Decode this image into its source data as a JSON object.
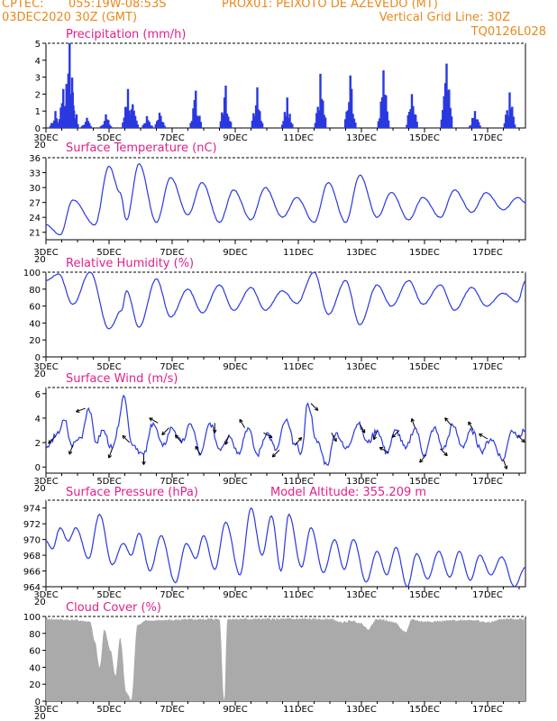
{
  "header": {
    "source": "CPTEC:",
    "coords": "055:19W-08:53S",
    "location": "PROX01: PEIXOTO DE AZEVEDO (MT)",
    "init": "03DEC2020 30Z (GMT)",
    "grid_line": "Vertical Grid Line: 30Z",
    "model_code": "TQ0126L028"
  },
  "colors": {
    "header": "#e8891c",
    "title": "#e0208a",
    "series": "#2a38e0",
    "cloud": "#aaaaaa",
    "arrow": "#000000"
  },
  "chart_data": [
    {
      "type": "bar",
      "title": "Precipitation (mm/h)",
      "ylim": [
        0,
        5
      ],
      "yticks": [
        0,
        1,
        2,
        3,
        4,
        5
      ],
      "x_ticks": [
        "3DEC",
        "5DEC",
        "7DEC",
        "9DEC",
        "11DEC",
        "13DEC",
        "15DEC",
        "17DEC"
      ],
      "x_range_days": [
        3,
        18.2
      ],
      "events": [
        {
          "day": 3.3,
          "value": 1.0
        },
        {
          "day": 3.55,
          "value": 2.3
        },
        {
          "day": 3.65,
          "value": 2.6
        },
        {
          "day": 3.75,
          "value": 5.0
        },
        {
          "day": 3.85,
          "value": 2.1
        },
        {
          "day": 4.3,
          "value": 0.6
        },
        {
          "day": 4.9,
          "value": 0.8
        },
        {
          "day": 5.6,
          "value": 2.3
        },
        {
          "day": 5.75,
          "value": 1.4
        },
        {
          "day": 6.2,
          "value": 0.7
        },
        {
          "day": 6.6,
          "value": 0.9
        },
        {
          "day": 7.75,
          "value": 2.2
        },
        {
          "day": 8.7,
          "value": 2.5
        },
        {
          "day": 9.7,
          "value": 2.4
        },
        {
          "day": 10.65,
          "value": 1.8
        },
        {
          "day": 11.7,
          "value": 3.2
        },
        {
          "day": 12.65,
          "value": 3.1
        },
        {
          "day": 13.7,
          "value": 3.4
        },
        {
          "day": 14.6,
          "value": 2.0
        },
        {
          "day": 15.7,
          "value": 3.8
        },
        {
          "day": 16.6,
          "value": 1.0
        },
        {
          "day": 17.7,
          "value": 2.1
        }
      ]
    },
    {
      "type": "line",
      "title": "Surface Temperature (nC)",
      "ylim": [
        19.5,
        36
      ],
      "yticks": [
        21,
        24,
        27,
        30,
        33,
        36
      ],
      "x_ticks": [
        "3DEC",
        "5DEC",
        "7DEC",
        "9DEC",
        "11DEC",
        "13DEC",
        "15DEC",
        "17DEC"
      ],
      "extrema": [
        {
          "day": 3.0,
          "value": 22.5
        },
        {
          "day": 3.45,
          "value": 20.5
        },
        {
          "day": 3.85,
          "value": 27.5
        },
        {
          "day": 4.55,
          "value": 22.5
        },
        {
          "day": 5.0,
          "value": 34.3
        },
        {
          "day": 5.35,
          "value": 29.0
        },
        {
          "day": 5.55,
          "value": 23.5
        },
        {
          "day": 5.95,
          "value": 34.8
        },
        {
          "day": 6.5,
          "value": 23.0
        },
        {
          "day": 6.95,
          "value": 32.0
        },
        {
          "day": 7.5,
          "value": 24.5
        },
        {
          "day": 7.95,
          "value": 31.0
        },
        {
          "day": 8.5,
          "value": 23.0
        },
        {
          "day": 8.95,
          "value": 29.5
        },
        {
          "day": 9.5,
          "value": 23.5
        },
        {
          "day": 9.95,
          "value": 30.0
        },
        {
          "day": 10.5,
          "value": 24.0
        },
        {
          "day": 10.95,
          "value": 28.0
        },
        {
          "day": 11.5,
          "value": 23.0
        },
        {
          "day": 11.95,
          "value": 31.0
        },
        {
          "day": 12.5,
          "value": 23.0
        },
        {
          "day": 12.95,
          "value": 32.5
        },
        {
          "day": 13.5,
          "value": 24.0
        },
        {
          "day": 13.95,
          "value": 29.0
        },
        {
          "day": 14.5,
          "value": 23.5
        },
        {
          "day": 14.95,
          "value": 28.0
        },
        {
          "day": 15.5,
          "value": 24.0
        },
        {
          "day": 15.95,
          "value": 29.5
        },
        {
          "day": 16.5,
          "value": 25.0
        },
        {
          "day": 16.95,
          "value": 29.0
        },
        {
          "day": 17.5,
          "value": 25.5
        },
        {
          "day": 17.95,
          "value": 28.0
        },
        {
          "day": 18.2,
          "value": 27.0
        }
      ]
    },
    {
      "type": "line",
      "title": "Relative Humidity (%)",
      "ylim": [
        0,
        100
      ],
      "yticks": [
        0,
        20,
        40,
        60,
        80,
        100
      ],
      "x_ticks": [
        "3DEC",
        "5DEC",
        "7DEC",
        "9DEC",
        "11DEC",
        "13DEC",
        "15DEC",
        "17DEC"
      ],
      "extrema": [
        {
          "day": 3.0,
          "value": 90
        },
        {
          "day": 3.4,
          "value": 98
        },
        {
          "day": 3.85,
          "value": 62
        },
        {
          "day": 4.4,
          "value": 100
        },
        {
          "day": 5.0,
          "value": 33
        },
        {
          "day": 5.4,
          "value": 55
        },
        {
          "day": 5.55,
          "value": 78
        },
        {
          "day": 5.95,
          "value": 35
        },
        {
          "day": 6.5,
          "value": 92
        },
        {
          "day": 6.95,
          "value": 47
        },
        {
          "day": 7.5,
          "value": 80
        },
        {
          "day": 7.95,
          "value": 52
        },
        {
          "day": 8.5,
          "value": 85
        },
        {
          "day": 8.95,
          "value": 55
        },
        {
          "day": 9.5,
          "value": 82
        },
        {
          "day": 9.95,
          "value": 55
        },
        {
          "day": 10.5,
          "value": 78
        },
        {
          "day": 10.95,
          "value": 63
        },
        {
          "day": 11.5,
          "value": 100
        },
        {
          "day": 11.95,
          "value": 50
        },
        {
          "day": 12.5,
          "value": 90
        },
        {
          "day": 12.95,
          "value": 38
        },
        {
          "day": 13.5,
          "value": 85
        },
        {
          "day": 13.95,
          "value": 60
        },
        {
          "day": 14.5,
          "value": 90
        },
        {
          "day": 14.95,
          "value": 62
        },
        {
          "day": 15.5,
          "value": 85
        },
        {
          "day": 15.95,
          "value": 55
        },
        {
          "day": 16.5,
          "value": 82
        },
        {
          "day": 16.95,
          "value": 60
        },
        {
          "day": 17.5,
          "value": 75
        },
        {
          "day": 17.95,
          "value": 65
        },
        {
          "day": 18.2,
          "value": 90
        }
      ]
    },
    {
      "type": "line",
      "title": "Surface Wind (m/s)",
      "ylim": [
        -0.5,
        6.5
      ],
      "yticks": [
        0,
        2,
        4,
        6
      ],
      "x_ticks": [
        "3DEC",
        "5DEC",
        "7DEC",
        "9DEC",
        "11DEC",
        "13DEC",
        "15DEC",
        "17DEC"
      ],
      "extrema": [
        {
          "day": 3.0,
          "value": 1.5
        },
        {
          "day": 3.3,
          "value": 2.5
        },
        {
          "day": 3.6,
          "value": 3.8
        },
        {
          "day": 3.8,
          "value": 1.8
        },
        {
          "day": 4.1,
          "value": 2.4
        },
        {
          "day": 4.35,
          "value": 4.8
        },
        {
          "day": 4.6,
          "value": 2.0
        },
        {
          "day": 4.8,
          "value": 3.0
        },
        {
          "day": 5.1,
          "value": 1.5
        },
        {
          "day": 5.5,
          "value": 5.7
        },
        {
          "day": 5.7,
          "value": 2.0
        },
        {
          "day": 6.1,
          "value": 1.0
        },
        {
          "day": 6.4,
          "value": 3.6
        },
        {
          "day": 6.7,
          "value": 1.7
        },
        {
          "day": 7.0,
          "value": 3.2
        },
        {
          "day": 7.3,
          "value": 2.0
        },
        {
          "day": 7.6,
          "value": 3.5
        },
        {
          "day": 7.9,
          "value": 1.0
        },
        {
          "day": 8.2,
          "value": 3.6
        },
        {
          "day": 8.5,
          "value": 1.5
        },
        {
          "day": 8.8,
          "value": 2.6
        },
        {
          "day": 9.1,
          "value": 1.2
        },
        {
          "day": 9.4,
          "value": 3.2
        },
        {
          "day": 9.7,
          "value": 1.0
        },
        {
          "day": 10.0,
          "value": 2.8
        },
        {
          "day": 10.3,
          "value": 1.4
        },
        {
          "day": 10.6,
          "value": 3.8
        },
        {
          "day": 10.9,
          "value": 1.8
        },
        {
          "day": 11.1,
          "value": 1.2
        },
        {
          "day": 11.3,
          "value": 5.2
        },
        {
          "day": 11.6,
          "value": 2.0
        },
        {
          "day": 11.9,
          "value": 0.2
        },
        {
          "day": 12.2,
          "value": 2.8
        },
        {
          "day": 12.5,
          "value": 1.5
        },
        {
          "day": 12.9,
          "value": 3.5
        },
        {
          "day": 13.2,
          "value": 2.0
        },
        {
          "day": 13.5,
          "value": 3.0
        },
        {
          "day": 13.8,
          "value": 1.2
        },
        {
          "day": 14.1,
          "value": 3.0
        },
        {
          "day": 14.4,
          "value": 1.5
        },
        {
          "day": 14.7,
          "value": 3.2
        },
        {
          "day": 15.0,
          "value": 1.0
        },
        {
          "day": 15.3,
          "value": 3.2
        },
        {
          "day": 15.6,
          "value": 1.5
        },
        {
          "day": 15.9,
          "value": 3.4
        },
        {
          "day": 16.2,
          "value": 1.7
        },
        {
          "day": 16.5,
          "value": 3.0
        },
        {
          "day": 16.8,
          "value": 1.3
        },
        {
          "day": 17.1,
          "value": 2.3
        },
        {
          "day": 17.5,
          "value": 0.6
        },
        {
          "day": 17.75,
          "value": 3.0
        },
        {
          "day": 18.0,
          "value": 2.6
        },
        {
          "day": 18.2,
          "value": 3.0
        }
      ],
      "wind_barbs": [
        {
          "day": 3.3,
          "to_deg": 225
        },
        {
          "day": 3.85,
          "to_deg": 200
        },
        {
          "day": 4.25,
          "to_deg": 250
        },
        {
          "day": 5.1,
          "to_deg": 200
        },
        {
          "day": 5.65,
          "to_deg": 315
        },
        {
          "day": 6.1,
          "to_deg": 180
        },
        {
          "day": 6.55,
          "to_deg": 300
        },
        {
          "day": 6.9,
          "to_deg": 225
        },
        {
          "day": 7.3,
          "to_deg": 320
        },
        {
          "day": 7.9,
          "to_deg": 330
        },
        {
          "day": 8.35,
          "to_deg": 180
        },
        {
          "day": 8.8,
          "to_deg": 200
        },
        {
          "day": 9.3,
          "to_deg": 330
        },
        {
          "day": 9.9,
          "to_deg": 120
        },
        {
          "day": 10.4,
          "to_deg": 225
        },
        {
          "day": 10.9,
          "to_deg": 40
        },
        {
          "day": 11.4,
          "to_deg": 135
        },
        {
          "day": 12.05,
          "to_deg": 150
        },
        {
          "day": 12.95,
          "to_deg": 150
        },
        {
          "day": 13.5,
          "to_deg": 200
        },
        {
          "day": 13.85,
          "to_deg": 300
        },
        {
          "day": 14.2,
          "to_deg": 225
        },
        {
          "day": 14.7,
          "to_deg": 340
        },
        {
          "day": 15.05,
          "to_deg": 220
        },
        {
          "day": 15.5,
          "to_deg": 135
        },
        {
          "day": 15.85,
          "to_deg": 320
        },
        {
          "day": 16.55,
          "to_deg": 330
        },
        {
          "day": 17.0,
          "to_deg": 300
        },
        {
          "day": 17.5,
          "to_deg": 160
        },
        {
          "day": 17.95,
          "to_deg": 135
        }
      ]
    },
    {
      "type": "line",
      "title": "Surface Pressure (hPa)",
      "subtitle": "Model Altitude: 355.209 m",
      "ylim": [
        964,
        975
      ],
      "yticks": [
        964,
        966,
        968,
        970,
        972,
        974
      ],
      "x_ticks": [
        "3DEC",
        "5DEC",
        "7DEC",
        "9DEC",
        "11DEC",
        "13DEC",
        "15DEC",
        "17DEC"
      ],
      "extrema": [
        {
          "day": 3.0,
          "value": 969.8
        },
        {
          "day": 3.2,
          "value": 968.8
        },
        {
          "day": 3.45,
          "value": 971.5
        },
        {
          "day": 3.7,
          "value": 969.8
        },
        {
          "day": 3.95,
          "value": 971.5
        },
        {
          "day": 4.35,
          "value": 967.6
        },
        {
          "day": 4.7,
          "value": 973.2
        },
        {
          "day": 5.1,
          "value": 966.8
        },
        {
          "day": 5.45,
          "value": 969.5
        },
        {
          "day": 5.7,
          "value": 968.0
        },
        {
          "day": 5.95,
          "value": 970.8
        },
        {
          "day": 6.3,
          "value": 966.0
        },
        {
          "day": 6.65,
          "value": 970.5
        },
        {
          "day": 7.1,
          "value": 964.5
        },
        {
          "day": 7.45,
          "value": 969.5
        },
        {
          "day": 7.75,
          "value": 967.6
        },
        {
          "day": 8.0,
          "value": 970.5
        },
        {
          "day": 8.35,
          "value": 966.2
        },
        {
          "day": 8.7,
          "value": 972.2
        },
        {
          "day": 9.15,
          "value": 965.5
        },
        {
          "day": 9.5,
          "value": 974.0
        },
        {
          "day": 9.85,
          "value": 968.0
        },
        {
          "day": 10.15,
          "value": 973.0
        },
        {
          "day": 10.45,
          "value": 966.0
        },
        {
          "day": 10.7,
          "value": 973.2
        },
        {
          "day": 11.1,
          "value": 966.5
        },
        {
          "day": 11.4,
          "value": 971.5
        },
        {
          "day": 11.8,
          "value": 965.8
        },
        {
          "day": 12.15,
          "value": 970.0
        },
        {
          "day": 12.45,
          "value": 966.2
        },
        {
          "day": 12.75,
          "value": 970.0
        },
        {
          "day": 13.15,
          "value": 964.6
        },
        {
          "day": 13.5,
          "value": 968.5
        },
        {
          "day": 13.8,
          "value": 965.5
        },
        {
          "day": 14.1,
          "value": 969.0
        },
        {
          "day": 14.45,
          "value": 964.0
        },
        {
          "day": 14.75,
          "value": 968.2
        },
        {
          "day": 15.1,
          "value": 965.0
        },
        {
          "day": 15.45,
          "value": 968.5
        },
        {
          "day": 15.8,
          "value": 965.2
        },
        {
          "day": 16.1,
          "value": 968.5
        },
        {
          "day": 16.45,
          "value": 964.8
        },
        {
          "day": 16.75,
          "value": 968.0
        },
        {
          "day": 17.1,
          "value": 965.5
        },
        {
          "day": 17.45,
          "value": 967.8
        },
        {
          "day": 17.85,
          "value": 964.0
        },
        {
          "day": 18.2,
          "value": 966.5
        }
      ]
    },
    {
      "type": "area",
      "title": "Cloud Cover (%)",
      "ylim": [
        0,
        100
      ],
      "yticks": [
        0,
        20,
        40,
        60,
        80,
        100
      ],
      "x_ticks": [
        "3DEC",
        "5DEC",
        "7DEC",
        "9DEC",
        "11DEC",
        "13DEC",
        "15DEC",
        "17DEC"
      ],
      "profile": [
        {
          "day": 3.0,
          "value": 97
        },
        {
          "day": 3.8,
          "value": 96
        },
        {
          "day": 4.4,
          "value": 94
        },
        {
          "day": 4.55,
          "value": 70
        },
        {
          "day": 4.7,
          "value": 40
        },
        {
          "day": 4.85,
          "value": 85
        },
        {
          "day": 5.05,
          "value": 60
        },
        {
          "day": 5.2,
          "value": 30
        },
        {
          "day": 5.35,
          "value": 75
        },
        {
          "day": 5.55,
          "value": 10
        },
        {
          "day": 5.7,
          "value": 2
        },
        {
          "day": 5.9,
          "value": 90
        },
        {
          "day": 6.2,
          "value": 95
        },
        {
          "day": 7.0,
          "value": 96
        },
        {
          "day": 8.5,
          "value": 97
        },
        {
          "day": 8.65,
          "value": 1
        },
        {
          "day": 8.75,
          "value": 97
        },
        {
          "day": 12.0,
          "value": 97
        },
        {
          "day": 12.4,
          "value": 93
        },
        {
          "day": 12.7,
          "value": 95
        },
        {
          "day": 13.0,
          "value": 92
        },
        {
          "day": 13.2,
          "value": 85
        },
        {
          "day": 13.5,
          "value": 97
        },
        {
          "day": 14.0,
          "value": 94
        },
        {
          "day": 14.4,
          "value": 82
        },
        {
          "day": 14.6,
          "value": 96
        },
        {
          "day": 15.0,
          "value": 94
        },
        {
          "day": 16.5,
          "value": 96
        },
        {
          "day": 17.0,
          "value": 93
        },
        {
          "day": 17.5,
          "value": 97
        },
        {
          "day": 18.2,
          "value": 97
        }
      ]
    }
  ]
}
